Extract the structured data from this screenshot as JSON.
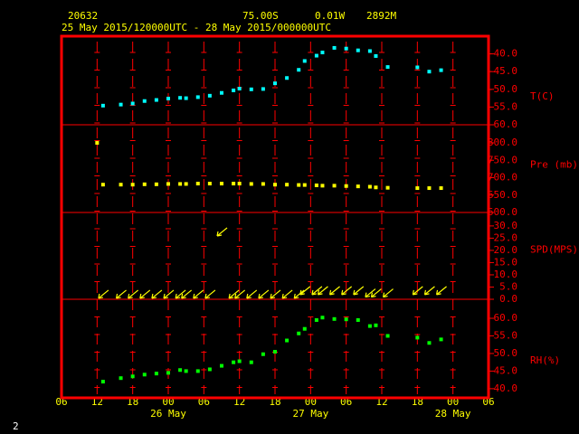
{
  "header": {
    "station": "20632",
    "lat": "75.00S",
    "lon": "0.01W",
    "elev": "2892M",
    "period": "25 May 2015/120000UTC - 28 May 2015/000000UTC"
  },
  "footer": "2",
  "chart_data": {
    "type": "multi-panel",
    "x": [
      "2015-05-25T12:00Z",
      "2015-05-25T13:00Z",
      "2015-05-25T16:00Z",
      "2015-05-25T18:00Z",
      "2015-05-25T20:00Z",
      "2015-05-25T22:00Z",
      "2015-05-26T00:00Z",
      "2015-05-26T02:00Z",
      "2015-05-26T03:00Z",
      "2015-05-26T05:00Z",
      "2015-05-26T07:00Z",
      "2015-05-26T09:00Z",
      "2015-05-26T11:00Z",
      "2015-05-26T12:00Z",
      "2015-05-26T14:00Z",
      "2015-05-26T16:00Z",
      "2015-05-26T18:00Z",
      "2015-05-26T20:00Z",
      "2015-05-26T22:00Z",
      "2015-05-26T23:00Z",
      "2015-05-27T01:00Z",
      "2015-05-27T02:00Z",
      "2015-05-27T04:00Z",
      "2015-05-27T06:00Z",
      "2015-05-27T08:00Z",
      "2015-05-27T10:00Z",
      "2015-05-27T11:00Z",
      "2015-05-27T13:00Z",
      "2015-05-27T18:00Z",
      "2015-05-27T20:00Z",
      "2015-05-27T22:00Z"
    ],
    "xlim": [
      "2015-05-25T06:00Z",
      "2015-05-28T06:00Z"
    ],
    "xticks": [
      {
        "value": "2015-05-25T06:00Z",
        "label": "06"
      },
      {
        "value": "2015-05-25T12:00Z",
        "label": "12"
      },
      {
        "value": "2015-05-25T18:00Z",
        "label": "18"
      },
      {
        "value": "2015-05-26T00:00Z",
        "label": "00"
      },
      {
        "value": "2015-05-26T06:00Z",
        "label": "06"
      },
      {
        "value": "2015-05-26T12:00Z",
        "label": "12"
      },
      {
        "value": "2015-05-26T18:00Z",
        "label": "18"
      },
      {
        "value": "2015-05-27T00:00Z",
        "label": "00"
      },
      {
        "value": "2015-05-27T06:00Z",
        "label": "06"
      },
      {
        "value": "2015-05-27T12:00Z",
        "label": "12"
      },
      {
        "value": "2015-05-27T18:00Z",
        "label": "18"
      },
      {
        "value": "2015-05-28T00:00Z",
        "label": "00"
      },
      {
        "value": "2015-05-28T06:00Z",
        "label": "06"
      }
    ],
    "date_ticks": [
      {
        "value": "2015-05-26T00:00Z",
        "label": "26 May"
      },
      {
        "value": "2015-05-27T00:00Z",
        "label": "27 May"
      },
      {
        "value": "2015-05-28T00:00Z",
        "label": "28 May"
      }
    ],
    "panels": [
      {
        "type": "scatter",
        "ylabel": "T(C)",
        "color": "#00ffff",
        "ylim": [
          -60,
          -35
        ],
        "yticks": [
          {
            "value": -60,
            "label": "-60.0"
          },
          {
            "value": -55,
            "label": "-55.0"
          },
          {
            "value": -50,
            "label": "-50.0"
          },
          {
            "value": -45,
            "label": "-45.0"
          },
          {
            "value": -40,
            "label": "-40.0"
          }
        ],
        "values": [
          null,
          -54.6,
          -54.3,
          -54.0,
          -53.3,
          -53.0,
          -52.6,
          -52.4,
          -52.5,
          -52.2,
          -51.8,
          -51.0,
          -50.3,
          -49.8,
          -50.0,
          -49.9,
          -48.3,
          -46.8,
          -44.5,
          -42.0,
          -40.5,
          -39.6,
          -38.3,
          -38.5,
          -39.0,
          -39.2,
          -40.6,
          -43.7,
          -43.8,
          -45.0,
          -44.6
        ]
      },
      {
        "type": "scatter",
        "ylabel": "Pre (mb)",
        "color": "#ffff00",
        "ylim": [
          600,
          852
        ],
        "yticks": [
          {
            "value": 600,
            "label": "600.0"
          },
          {
            "value": 650,
            "label": "650.0"
          },
          {
            "value": 700,
            "label": "700.0"
          },
          {
            "value": 750,
            "label": "750.0"
          },
          {
            "value": 800,
            "label": "800.0"
          }
        ],
        "values": [
          800,
          680,
          680,
          680,
          681,
          681,
          682,
          682,
          682,
          683,
          683,
          683,
          683,
          683,
          682,
          682,
          680,
          680,
          679,
          679,
          678,
          677,
          677,
          676,
          675,
          674,
          672,
          671,
          670,
          670,
          670
        ]
      },
      {
        "type": "barb",
        "ylabel": "SPD(MPS)",
        "color": "#ffff00",
        "ylim": [
          0,
          35.5
        ],
        "yticks": [
          {
            "value": 0,
            "label": "0.0"
          },
          {
            "value": 5,
            "label": "5.0"
          },
          {
            "value": 10,
            "label": "10.0"
          },
          {
            "value": 15,
            "label": "15.0"
          },
          {
            "value": 20,
            "label": "20.0"
          },
          {
            "value": 25,
            "label": "25.0"
          },
          {
            "value": 30,
            "label": "30.0"
          }
        ],
        "values": [
          null,
          1.5,
          1.5,
          1.5,
          1.5,
          1.5,
          1.5,
          1.5,
          1.5,
          1.5,
          1.5,
          27,
          1.5,
          1.5,
          1.5,
          1.5,
          1.5,
          1.5,
          1.5,
          3,
          3,
          3,
          3,
          3,
          3,
          2,
          2,
          2,
          3,
          3,
          3
        ]
      },
      {
        "type": "scatter",
        "ylabel": "RH(%)",
        "color": "#00ff00",
        "ylim": [
          37.4,
          65.4
        ],
        "yticks": [
          {
            "value": 40,
            "label": "40.0"
          },
          {
            "value": 45,
            "label": "45.0"
          },
          {
            "value": 50,
            "label": "50.0"
          },
          {
            "value": 55,
            "label": "55.0"
          },
          {
            "value": 60,
            "label": "60.0"
          }
        ],
        "values": [
          null,
          42,
          43,
          43.5,
          44,
          44.3,
          44.5,
          45.3,
          45,
          45,
          45.5,
          46.5,
          47.5,
          47.8,
          47.5,
          49.8,
          50.5,
          53.7,
          55.7,
          57,
          59.5,
          60.2,
          59.8,
          59.7,
          59.5,
          57.8,
          58,
          55,
          54.5,
          53,
          54
        ]
      }
    ]
  }
}
